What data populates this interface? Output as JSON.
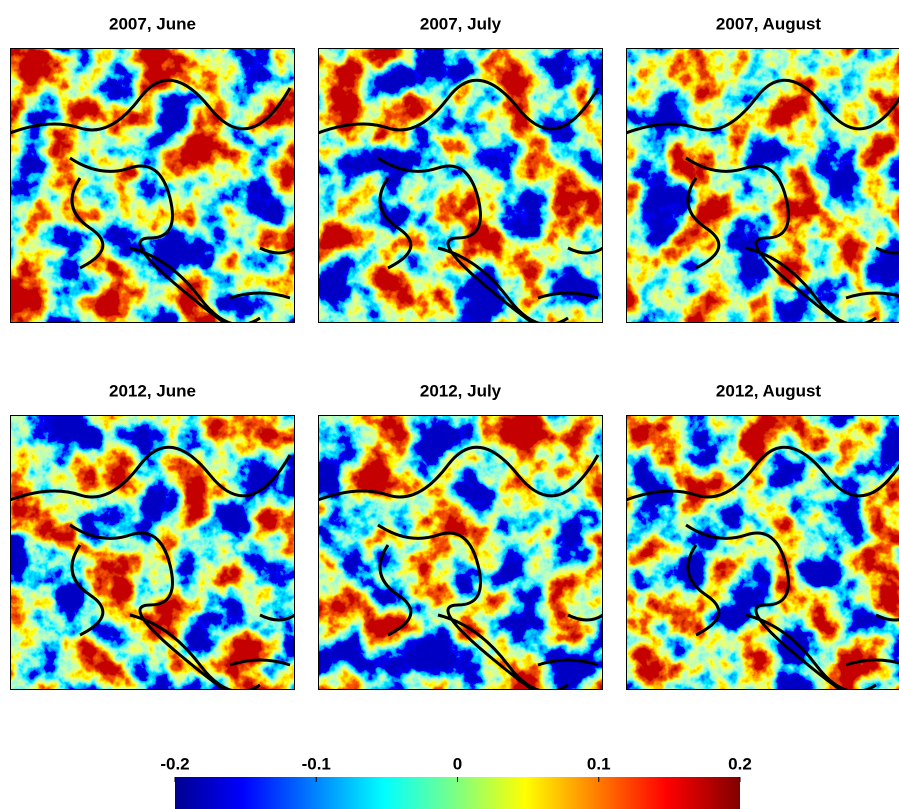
{
  "panels": [
    {
      "title": "2007, June"
    },
    {
      "title": "2007, July"
    },
    {
      "title": "2007, August"
    },
    {
      "title": "2012, June"
    },
    {
      "title": "2012, July"
    },
    {
      "title": "2012, August"
    }
  ],
  "colorbar": {
    "lim": [
      -0.2,
      0.2
    ],
    "ticks": [
      -0.2,
      -0.1,
      0,
      0.1,
      0.2
    ]
  }
}
